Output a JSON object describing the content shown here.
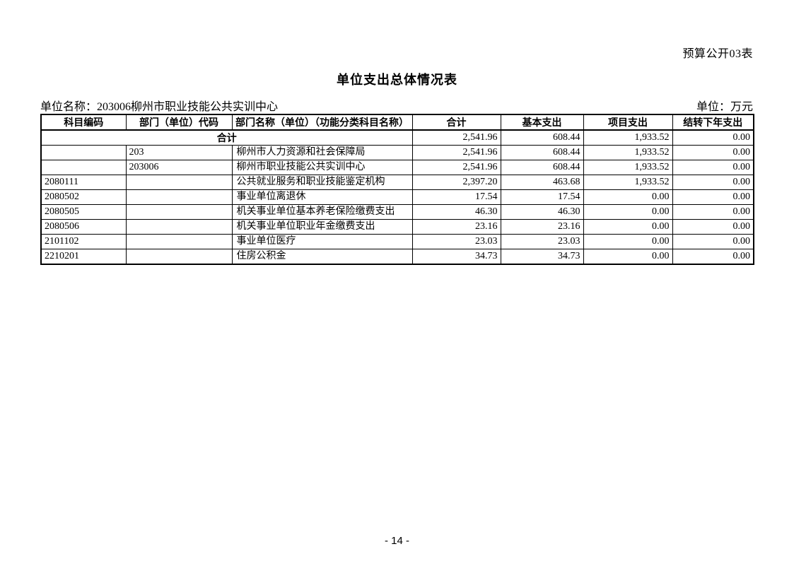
{
  "page": {
    "corner_label": "预算公开03表",
    "title": "单位支出总体情况表",
    "unit_name": "单位名称：203006柳州市职业技能公共实训中心",
    "unit_measure": "单位：万元",
    "page_number": "- 14 -"
  },
  "table": {
    "columns": [
      "科目编码",
      "部门（单位）代码",
      "部门名称（单位）（功能分类科目名称）",
      "合计",
      "基本支出",
      "项目支出",
      "结转下年支出"
    ],
    "total_row": {
      "label": "合计",
      "values": [
        "2,541.96",
        "608.44",
        "1,933.52",
        "0.00"
      ]
    },
    "rows": [
      {
        "subject_code": "",
        "dept_code": "203",
        "name": "柳州市人力资源和社会保障局",
        "total": "2,541.96",
        "basic": "608.44",
        "project": "1,933.52",
        "carryover": "0.00"
      },
      {
        "subject_code": "",
        "dept_code": "203006",
        "name": "柳州市职业技能公共实训中心",
        "total": "2,541.96",
        "basic": "608.44",
        "project": "1,933.52",
        "carryover": "0.00"
      },
      {
        "subject_code": "2080111",
        "dept_code": "",
        "name": "公共就业服务和职业技能鉴定机构",
        "total": "2,397.20",
        "basic": "463.68",
        "project": "1,933.52",
        "carryover": "0.00"
      },
      {
        "subject_code": "2080502",
        "dept_code": "",
        "name": "事业单位离退休",
        "total": "17.54",
        "basic": "17.54",
        "project": "0.00",
        "carryover": "0.00"
      },
      {
        "subject_code": "2080505",
        "dept_code": "",
        "name": "机关事业单位基本养老保险缴费支出",
        "total": "46.30",
        "basic": "46.30",
        "project": "0.00",
        "carryover": "0.00"
      },
      {
        "subject_code": "2080506",
        "dept_code": "",
        "name": "机关事业单位职业年金缴费支出",
        "total": "23.16",
        "basic": "23.16",
        "project": "0.00",
        "carryover": "0.00"
      },
      {
        "subject_code": "2101102",
        "dept_code": "",
        "name": "事业单位医疗",
        "total": "23.03",
        "basic": "23.03",
        "project": "0.00",
        "carryover": "0.00"
      },
      {
        "subject_code": "2210201",
        "dept_code": "",
        "name": "住房公积金",
        "total": "34.73",
        "basic": "34.73",
        "project": "0.00",
        "carryover": "0.00"
      }
    ]
  }
}
